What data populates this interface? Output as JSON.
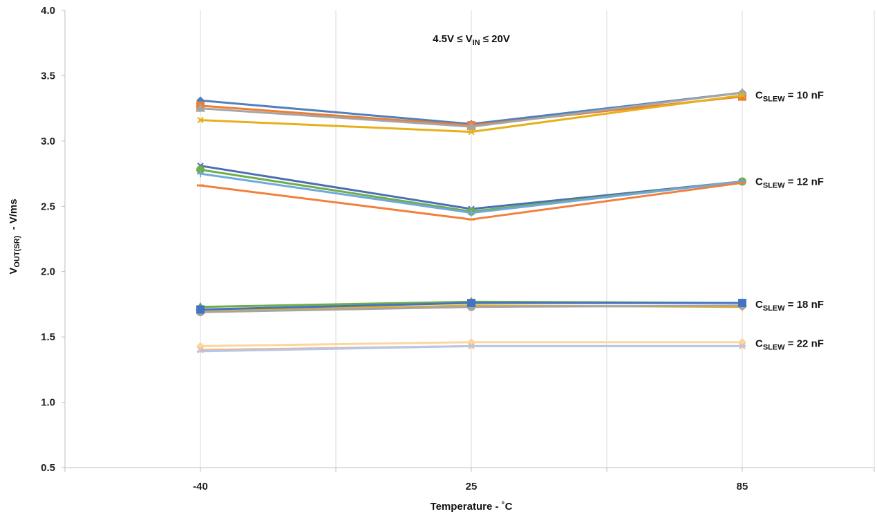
{
  "chart_data": {
    "type": "line",
    "xlabel": "Temperature - ˚C",
    "ylabel": {
      "main": "V",
      "sub": "OUT(SR)",
      "rest": "  - V/ms"
    },
    "categories": [
      "-40",
      "25",
      "85"
    ],
    "ylim": [
      0.5,
      4.0
    ],
    "yticks": [
      "0.5",
      "1.0",
      "1.5",
      "2.0",
      "2.5",
      "3.0",
      "3.5",
      "4.0"
    ],
    "grid": "vertical",
    "condition": {
      "pre": "4.5V ≤ V",
      "sub": "IN",
      "post": " ≤ 20V"
    },
    "groups": [
      {
        "label": {
          "main": "C",
          "sub": "SLEW",
          "post": " = 10 nF"
        },
        "y": 3.34
      },
      {
        "label": {
          "main": "C",
          "sub": "SLEW",
          "post": " = 12 nF"
        },
        "y": 2.68
      },
      {
        "label": {
          "main": "C",
          "sub": "SLEW",
          "post": " = 18 nF"
        },
        "y": 1.74
      },
      {
        "label": {
          "main": "C",
          "sub": "SLEW",
          "post": " = 22 nF"
        },
        "y": 1.44
      }
    ],
    "series": [
      {
        "color": "#4e81bd",
        "marker": "diamond",
        "values": [
          3.31,
          3.13,
          3.37
        ]
      },
      {
        "color": "#ed7d31",
        "marker": "square",
        "values": [
          3.27,
          3.12,
          3.34
        ]
      },
      {
        "color": "#a5a5a5",
        "marker": "triangle",
        "values": [
          3.25,
          3.11,
          3.37
        ]
      },
      {
        "color": "#e6b01a",
        "marker": "x",
        "values": [
          3.16,
          3.07,
          3.35
        ]
      },
      {
        "color": "#4a6fb5",
        "marker": "x",
        "values": [
          2.81,
          2.48,
          2.69
        ]
      },
      {
        "color": "#70ad47",
        "marker": "circle",
        "values": [
          2.78,
          2.46,
          2.69
        ]
      },
      {
        "color": "#6ea8dd",
        "marker": "plus",
        "values": [
          2.75,
          2.45,
          2.69
        ]
      },
      {
        "color": "#f0803c",
        "marker": "dash",
        "values": [
          2.66,
          2.4,
          2.68
        ]
      },
      {
        "color": "#70ad47",
        "marker": "triangle",
        "values": [
          1.73,
          1.77,
          1.76
        ]
      },
      {
        "color": "#e6b01a",
        "marker": "diamond",
        "values": [
          1.7,
          1.74,
          1.73
        ]
      },
      {
        "color": "#a5a5a5",
        "marker": "circle",
        "values": [
          1.69,
          1.73,
          1.74
        ]
      },
      {
        "color": "#4473c4",
        "marker": "square",
        "values": [
          1.71,
          1.76,
          1.76
        ]
      },
      {
        "color": "#fbd7a0",
        "marker": "diamond",
        "values": [
          1.43,
          1.46,
          1.46
        ]
      },
      {
        "color": "#f2b48b",
        "marker": "x",
        "values": [
          1.4,
          1.43,
          1.43
        ]
      },
      {
        "color": "#b4c7e7",
        "marker": "dash",
        "values": [
          1.39,
          1.43,
          1.43
        ]
      }
    ]
  }
}
